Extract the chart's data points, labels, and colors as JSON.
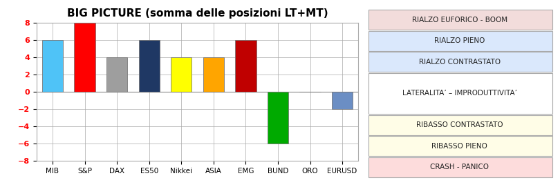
{
  "categories": [
    "MIB",
    "S&P",
    "DAX",
    "ES50",
    "Nikkei",
    "ASIA",
    "EMG",
    "BUND",
    "ORO",
    "EURUSD"
  ],
  "values": [
    6,
    8,
    4,
    6,
    4,
    4,
    6,
    -6,
    0,
    -2
  ],
  "bar_colors": [
    "#4FC3F7",
    "#FF0000",
    "#9E9E9E",
    "#1F3864",
    "#FFFF00",
    "#FFA500",
    "#C00000",
    "#00AA00",
    "#FFFFFF",
    "#6B8EC4"
  ],
  "bar_edgecolors": [
    "#777777",
    "#777777",
    "#777777",
    "#777777",
    "#777777",
    "#777777",
    "#777777",
    "#777777",
    "#777777",
    "#777777"
  ],
  "title": "BIG PICTURE (somma delle posizioni LT+MT)",
  "ylim": [
    -8,
    8
  ],
  "yticks": [
    -8,
    -6,
    -4,
    -2,
    0,
    2,
    4,
    6,
    8
  ],
  "legend_labels": [
    "RIALZO EUFORICO - BOOM",
    "RIALZO PIENO",
    "RIALZO CONTRASTATO",
    "LATERALITA’ – IMPRODUTTIVITA’",
    "RIBASSO CONTRASTATO",
    "RIBASSO PIENO",
    "CRASH - PANICO"
  ],
  "legend_colors": [
    "#F2DCDB",
    "#DAE8FC",
    "#DAE8FC",
    "#FFFFFF",
    "#FFFDE7",
    "#FFFDE7",
    "#FDDCDC"
  ],
  "legend_ranges": [
    [
      6,
      8
    ],
    [
      4,
      6
    ],
    [
      2,
      4
    ],
    [
      -2,
      2
    ],
    [
      -4,
      -2
    ],
    [
      -6,
      -4
    ],
    [
      -8,
      -6
    ]
  ],
  "background_color": "#FFFFFF",
  "plot_bg_color": "#FFFFFF",
  "title_fontsize": 11,
  "tick_color": "#FF0000"
}
